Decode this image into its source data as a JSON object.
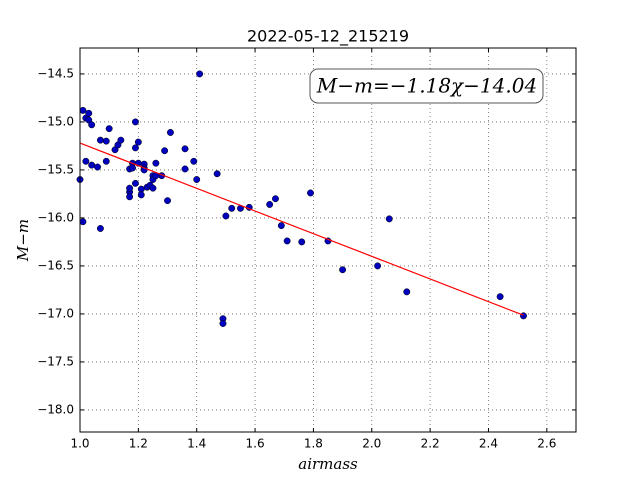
{
  "chart_data": {
    "type": "scatter",
    "title": "2022-05-12_215219",
    "xlabel": "airmass",
    "ylabel": "M−m",
    "annotation": "M−m=−1.18χ−14.04",
    "xlim": [
      1.0,
      2.7
    ],
    "ylim": [
      -18.23,
      -14.23
    ],
    "xticks": [
      {
        "value": 1.0,
        "label": "1.0"
      },
      {
        "value": 1.2,
        "label": "1.2"
      },
      {
        "value": 1.4,
        "label": "1.4"
      },
      {
        "value": 1.6,
        "label": "1.6"
      },
      {
        "value": 1.8,
        "label": "1.8"
      },
      {
        "value": 2.0,
        "label": "2.0"
      },
      {
        "value": 2.2,
        "label": "2.2"
      },
      {
        "value": 2.4,
        "label": "2.4"
      },
      {
        "value": 2.6,
        "label": "2.6"
      }
    ],
    "yticks": [
      {
        "value": -18.0,
        "label": "−18.0"
      },
      {
        "value": -17.5,
        "label": "−17.5"
      },
      {
        "value": -17.0,
        "label": "−17.0"
      },
      {
        "value": -16.5,
        "label": "−16.5"
      },
      {
        "value": -16.0,
        "label": "−16.0"
      },
      {
        "value": -15.5,
        "label": "−15.5"
      },
      {
        "value": -15.0,
        "label": "−15.0"
      },
      {
        "value": -14.5,
        "label": "−14.5"
      }
    ],
    "grid": true,
    "series": [
      {
        "color": "#0000bf",
        "x": [
          1.0,
          1.01,
          1.01,
          1.02,
          1.03,
          1.03,
          1.04,
          1.02,
          1.04,
          1.06,
          1.07,
          1.07,
          1.09,
          1.1,
          1.09,
          1.12,
          1.13,
          1.14,
          1.17,
          1.17,
          1.17,
          1.17,
          1.18,
          1.18,
          1.19,
          1.19,
          1.2,
          1.19,
          1.2,
          1.21,
          1.21,
          1.22,
          1.22,
          1.22,
          1.23,
          1.24,
          1.25,
          1.25,
          1.25,
          1.26,
          1.26,
          1.28,
          1.29,
          1.31,
          1.3,
          1.36,
          1.36,
          1.39,
          1.4,
          1.41,
          1.47,
          1.49,
          1.49,
          1.5,
          1.52,
          1.55,
          1.58,
          1.65,
          1.67,
          1.69,
          1.71,
          1.76,
          1.79,
          1.85,
          1.9,
          2.02,
          2.06,
          2.12,
          2.44,
          2.52
        ],
        "values": [
          -15.6,
          -16.04,
          -14.88,
          -14.96,
          -14.91,
          -14.98,
          -15.03,
          -15.41,
          -15.45,
          -15.47,
          -16.11,
          -15.19,
          -15.2,
          -15.07,
          -15.41,
          -15.29,
          -15.24,
          -15.19,
          -15.73,
          -15.78,
          -15.69,
          -15.49,
          -15.43,
          -15.48,
          -15.27,
          -15.0,
          -15.43,
          -15.64,
          -15.21,
          -15.7,
          -15.76,
          -15.44,
          -15.48,
          -15.5,
          -15.68,
          -15.66,
          -15.56,
          -15.69,
          -15.6,
          -15.43,
          -15.56,
          -15.56,
          -15.3,
          -15.11,
          -15.82,
          -15.28,
          -15.49,
          -15.41,
          -15.6,
          -14.5,
          -15.54,
          -17.05,
          -17.1,
          -15.98,
          -15.9,
          -15.9,
          -15.89,
          -15.86,
          -15.8,
          -16.08,
          -16.24,
          -16.25,
          -15.74,
          -16.24,
          -16.54,
          -16.5,
          -16.01,
          -16.77,
          -16.82,
          -17.02
        ]
      }
    ],
    "fit": {
      "slope": -1.18,
      "intercept": -14.04,
      "x": [
        1.0,
        2.52
      ],
      "color": "#ff0000"
    }
  }
}
